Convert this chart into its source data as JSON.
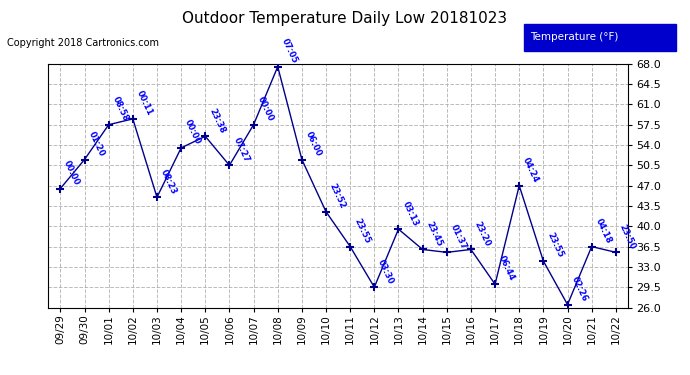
{
  "title": "Outdoor Temperature Daily Low 20181023",
  "copyright": "Copyright 2018 Cartronics.com",
  "legend_label": "Temperature (°F)",
  "x_labels": [
    "09/29",
    "09/30",
    "10/01",
    "10/02",
    "10/03",
    "10/04",
    "10/05",
    "10/06",
    "10/07",
    "10/08",
    "10/09",
    "10/10",
    "10/11",
    "10/12",
    "10/13",
    "10/14",
    "10/15",
    "10/16",
    "10/17",
    "10/18",
    "10/19",
    "10/20",
    "10/21",
    "10/22"
  ],
  "y_values": [
    46.5,
    51.5,
    57.5,
    58.5,
    45.0,
    53.5,
    55.5,
    50.5,
    57.5,
    67.5,
    51.5,
    42.5,
    36.5,
    29.5,
    39.5,
    36.0,
    35.5,
    36.0,
    30.0,
    47.0,
    34.0,
    26.5,
    36.5,
    35.5
  ],
  "time_labels": [
    "00:00",
    "01:20",
    "08:58",
    "00:11",
    "08:23",
    "00:00",
    "23:38",
    "07:27",
    "00:00",
    "07:05",
    "06:00",
    "23:52",
    "23:55",
    "03:30",
    "03:13",
    "23:45",
    "01:37",
    "23:20",
    "06:44",
    "04:24",
    "23:55",
    "02:26",
    "04:18",
    "23:50"
  ],
  "ylim": [
    26.0,
    68.0
  ],
  "yticks": [
    26.0,
    29.5,
    33.0,
    36.5,
    40.0,
    43.5,
    47.0,
    50.5,
    54.0,
    57.5,
    61.0,
    64.5,
    68.0
  ],
  "line_color": "#00008B",
  "marker_color": "#00008B",
  "label_color": "#0000FF",
  "bg_color": "#FFFFFF",
  "grid_color": "#AAAAAA",
  "title_color": "#000000",
  "legend_bg": "#0000CC",
  "legend_text_color": "#FFFFFF"
}
